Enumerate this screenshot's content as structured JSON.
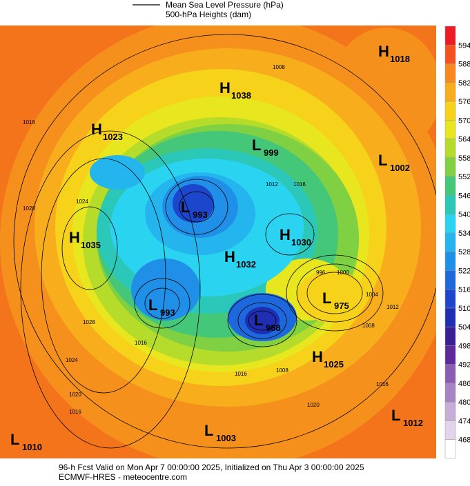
{
  "legend": {
    "line1": "Mean Sea Level Pressure (hPa)",
    "line2": "500-hPa Heights (dam)"
  },
  "systems": [
    {
      "letter": "H",
      "value": "1018"
    },
    {
      "letter": "H",
      "value": "1038"
    },
    {
      "letter": "H",
      "value": "1023"
    },
    {
      "letter": "L",
      "value": "999"
    },
    {
      "letter": "L",
      "value": "1002"
    },
    {
      "letter": "L",
      "value": "993"
    },
    {
      "letter": "H",
      "value": "1035"
    },
    {
      "letter": "H",
      "value": "1030"
    },
    {
      "letter": "H",
      "value": "1032"
    },
    {
      "letter": "L",
      "value": "975"
    },
    {
      "letter": "L",
      "value": "993"
    },
    {
      "letter": "L",
      "value": "988"
    },
    {
      "letter": "H",
      "value": "1025"
    },
    {
      "letter": "L",
      "value": "1012"
    },
    {
      "letter": "L",
      "value": "1003"
    },
    {
      "letter": "L",
      "value": "1010"
    }
  ],
  "contour_labels": [
    "1016",
    "1020",
    "1024",
    "1028",
    "1016",
    "1020",
    "1024",
    "1008",
    "1012",
    "1016",
    "996",
    "1000",
    "1004",
    "1008",
    "1012",
    "1016",
    "1020",
    "1016",
    "1008",
    "1016"
  ],
  "colorbar": {
    "labels": [
      "594",
      "588",
      "582",
      "576",
      "570",
      "564",
      "558",
      "552",
      "546",
      "540",
      "534",
      "528",
      "522",
      "516",
      "510",
      "504",
      "498",
      "492",
      "486",
      "480",
      "474",
      "468"
    ],
    "colors": [
      "#ec1c24",
      "#f4511e",
      "#f7891e",
      "#f8ae1c",
      "#f6d21a",
      "#e8e61e",
      "#b5dc2b",
      "#7fd042",
      "#45c77a",
      "#2bc8b9",
      "#2ad3f0",
      "#25b5ee",
      "#1f8fe8",
      "#1c68dc",
      "#1c46cc",
      "#1e2fb4",
      "#3a1e96",
      "#5e2a9a",
      "#8a5cb2",
      "#a884c6",
      "#c7aed8",
      "#e2d4ec",
      "#ffffff"
    ]
  },
  "footer": {
    "line1": "96-h Fcst Valid on Mon Apr  7 00:00:00 2025, Initialized on Thu Apr  3 00:00:00 2025",
    "line2": "ECMWF-HRES - meteocentre.com"
  }
}
